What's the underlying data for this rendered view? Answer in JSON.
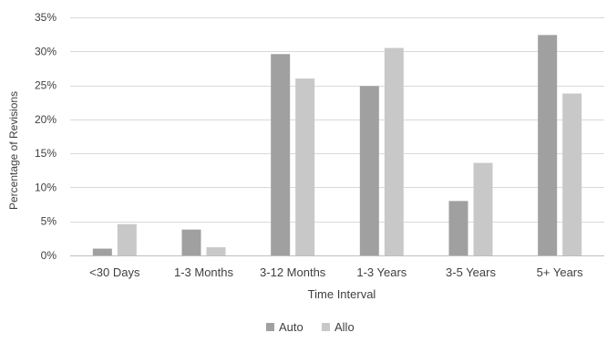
{
  "chart_data": {
    "type": "bar",
    "title": "",
    "xlabel": "Time Interval",
    "ylabel": "Percentage of Revisions",
    "categories": [
      "<30 Days",
      "1-3 Months",
      "3-12 Months",
      "1-3 Years",
      "3-5 Years",
      "5+ Years"
    ],
    "series": [
      {
        "name": "Auto",
        "color": "#a0a0a0",
        "values": [
          1.0,
          3.8,
          29.6,
          24.9,
          8.0,
          32.4
        ]
      },
      {
        "name": "Allo",
        "color": "#c8c8c8",
        "values": [
          4.6,
          1.2,
          26.0,
          30.5,
          13.6,
          23.8
        ]
      }
    ],
    "ylim": [
      0,
      35
    ],
    "yticks": [
      0,
      5,
      10,
      15,
      20,
      25,
      30,
      35
    ],
    "ytick_labels": [
      "0%",
      "5%",
      "10%",
      "15%",
      "20%",
      "25%",
      "30%",
      "35%"
    ],
    "grid": true,
    "legend_position": "bottom-center"
  }
}
